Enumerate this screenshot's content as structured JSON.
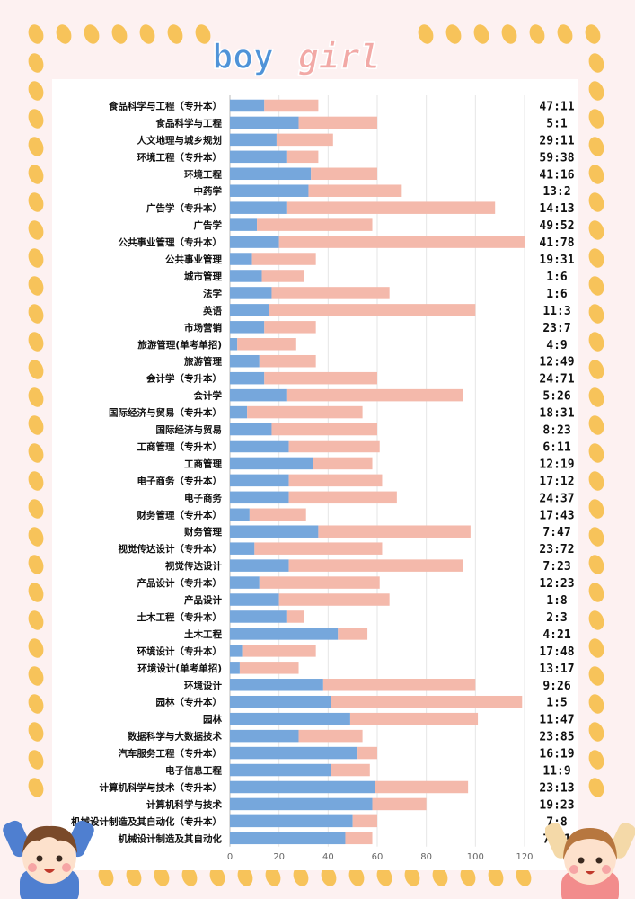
{
  "title": {
    "boy": "boy",
    "girl": "girl"
  },
  "colors": {
    "boy": "#76a7dc",
    "girl": "#f4b9ab",
    "dots": "#f7c35a",
    "panel": "#ffffff",
    "background": "#fdf1f1",
    "boy_title": "#4f93d8",
    "girl_title": "#f2a9a6"
  },
  "chart_data": {
    "type": "bar",
    "orientation": "horizontal",
    "stacked": true,
    "categories": [
      "食品科学与工程（专升本）",
      "食品科学与工程",
      "人文地理与城乡规划",
      "环境工程（专升本）",
      "环境工程",
      "中药学",
      "广告学（专升本）",
      "广告学",
      "公共事业管理（专升本）",
      "公共事业管理",
      "城市管理",
      "法学",
      "英语",
      "市场营销",
      "旅游管理(单考单招)",
      "旅游管理",
      "会计学（专升本）",
      "会计学",
      "国际经济与贸易（专升本）",
      "国际经济与贸易",
      "工商管理（专升本）",
      "工商管理",
      "电子商务（专升本）",
      "电子商务",
      "财务管理（专升本）",
      "财务管理",
      "视觉传达设计（专升本）",
      "视觉传达设计",
      "产品设计（专升本）",
      "产品设计",
      "土木工程（专升本）",
      "土木工程",
      "环境设计（专升本）",
      "环境设计(单考单招)",
      "环境设计",
      "园林（专升本）",
      "园林",
      "数据科学与大数据技术",
      "汽车服务工程（专升本）",
      "电子信息工程",
      "计算机科学与技术（专升本）",
      "计算机科学与技术",
      "机械设计制造及其自动化（专升本）",
      "机械设计制造及其自动化"
    ],
    "series": [
      {
        "name": "boy",
        "values": [
          14,
          28,
          19,
          23,
          33,
          32,
          23,
          11,
          20,
          9,
          13,
          17,
          16,
          14,
          3,
          12,
          14,
          23,
          7,
          17,
          24,
          34,
          24,
          24,
          8,
          36,
          10,
          24,
          12,
          20,
          23,
          44,
          5,
          4,
          38,
          41,
          49,
          28,
          52,
          41,
          59,
          58,
          50,
          47
        ]
      },
      {
        "name": "girl",
        "values": [
          22,
          32,
          23,
          13,
          27,
          38,
          85,
          47,
          100,
          26,
          17,
          48,
          84,
          21,
          24,
          23,
          46,
          72,
          47,
          43,
          37,
          24,
          38,
          44,
          23,
          62,
          52,
          71,
          49,
          45,
          7,
          12,
          30,
          24,
          62,
          78,
          52,
          26,
          8,
          16,
          38,
          22,
          10,
          11
        ]
      }
    ],
    "ratios": [
      "47:11",
      "5:1",
      "29:11",
      "59:38",
      "41:16",
      "13:2",
      "14:13",
      "49:52",
      "41:78",
      "19:31",
      "1:6",
      "1:6",
      "11:3",
      "23:7",
      "4:9",
      "12:49",
      "24:71",
      "5:26",
      "18:31",
      "8:23",
      "6:11",
      "12:19",
      "17:12",
      "24:37",
      "17:43",
      "7:47",
      "23:72",
      "7:23",
      "12:23",
      "1:8",
      "2:3",
      "4:21",
      "17:48",
      "13:17",
      "9:26",
      "1:5",
      "11:47",
      "23:85",
      "16:19",
      "11:9",
      "23:13",
      "19:23",
      "7:8",
      "7:11"
    ],
    "x_ticks": [
      "0",
      "20",
      "40",
      "60",
      "80",
      "100",
      "120"
    ],
    "xlim": [
      0,
      120
    ],
    "grid": true,
    "legend": "none"
  }
}
